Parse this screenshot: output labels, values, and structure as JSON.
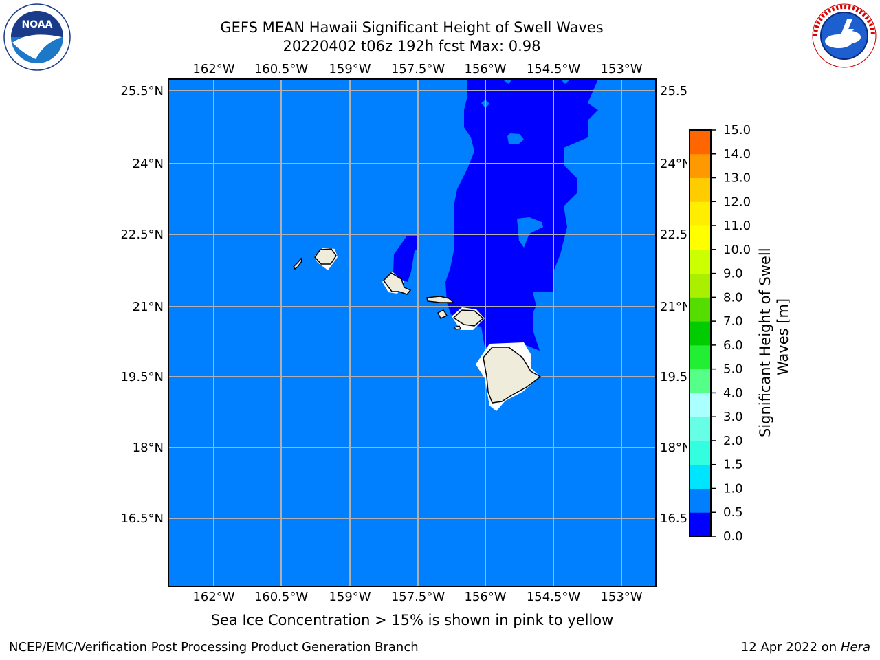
{
  "header": {
    "title_line1": "GEFS MEAN Hawaii Significant Height of Swell Waves",
    "title_line2": "20220402 t06z 192h fcst   Max: 0.98"
  },
  "logos": {
    "left": {
      "icon": "noaa-logo-icon",
      "text": "NOAA",
      "ring_text": "NATIONAL OCEANIC AND ATMOSPHERIC ADMINISTRATION · U.S. DEPARTMENT OF COMMERCE"
    },
    "right": {
      "icon": "nws-logo-icon",
      "ring_text": "NATIONAL WEATHER SERVICE"
    }
  },
  "map": {
    "region": "Hawaii",
    "lon_labels": [
      "162°W",
      "160.5°W",
      "159°W",
      "157.5°W",
      "156°W",
      "154.5°W",
      "153°W"
    ],
    "lat_labels": [
      "25.5°N",
      "24°N",
      "22.5°N",
      "21°N",
      "19.5°N",
      "18°N",
      "16.5°N"
    ],
    "grid": true,
    "colors": {
      "ocean_low": "#0000ff",
      "ocean_mid": "#0080ff",
      "land": "#efecdc",
      "gridline": "#b0b0b0"
    }
  },
  "colorbar": {
    "label": "Significant Height of Swell Waves [m]",
    "label_line1": "Significant Height of Swell",
    "label_line2": "Waves [m]",
    "ticks": [
      "15.0",
      "14.0",
      "13.0",
      "12.0",
      "11.0",
      "10.0",
      "9.0",
      "8.0",
      "7.0",
      "6.0",
      "5.0",
      "4.0",
      "3.0",
      "2.0",
      "1.5",
      "1.0",
      "0.5",
      "0.0"
    ],
    "colors_bottom_to_top": [
      "#0000ff",
      "#0080ff",
      "#00e5ff",
      "#33ffe0",
      "#66ffe6",
      "#aaffff",
      "#55ff88",
      "#22ee33",
      "#00cc00",
      "#55dd00",
      "#aaee00",
      "#ccff00",
      "#ffff00",
      "#ffee00",
      "#ffcc00",
      "#ff9900",
      "#ff6600",
      "#ff3300",
      "#ff0000"
    ]
  },
  "note": "Sea Ice Concentration > 15% is shown in pink to yellow",
  "footer": {
    "left": "NCEP/EMC/Verification Post Processing Product Generation Branch",
    "right_date": "12 Apr 2022 on ",
    "right_host": "Hera"
  }
}
